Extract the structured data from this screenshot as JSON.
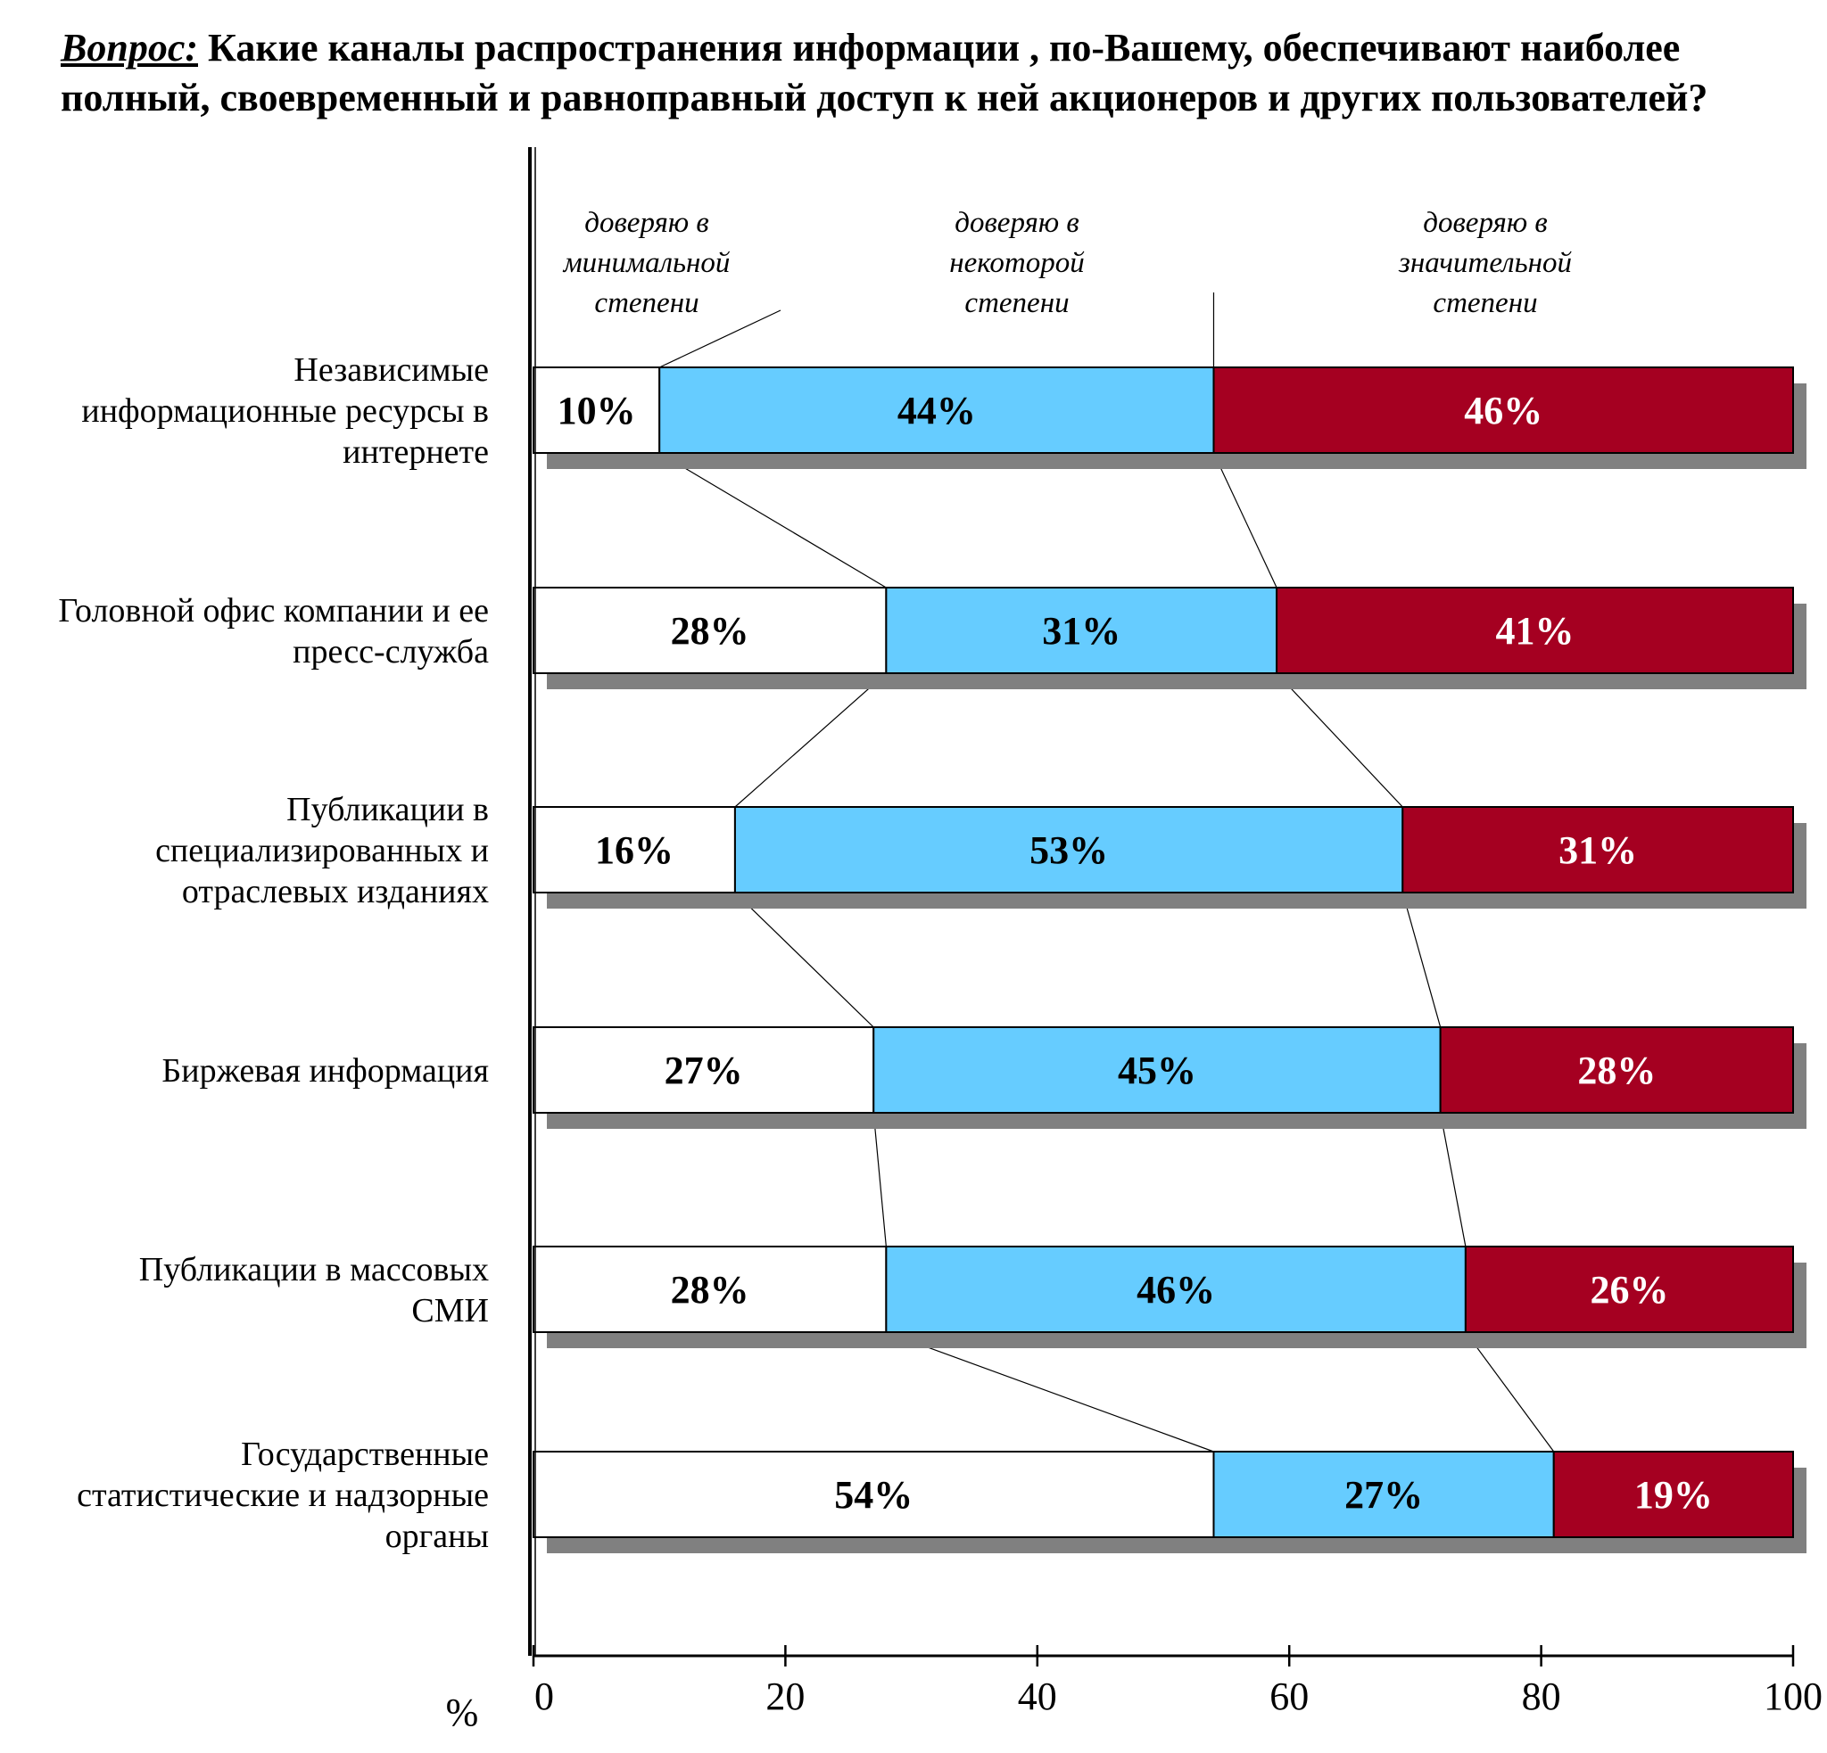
{
  "question": {
    "label": "Вопрос:",
    "text": "Какие каналы распространения информации , по-Вашему, обеспечивают наиболее полный, своевременный и равноправный доступ к ней акционеров и других пользователей?"
  },
  "colors": {
    "minimal": "#ffffff",
    "some": "#66ccff",
    "significant": "#a50021",
    "shadow": "#808080",
    "label_dark": "#000000",
    "label_light": "#ffffff"
  },
  "chart_data": {
    "type": "bar",
    "orientation": "horizontal",
    "stacked": true,
    "grid": false,
    "categories": [
      [
        "Независимые",
        "информационные ресурсы в",
        "интернете"
      ],
      [
        "Головной офис компании и ее",
        "пресс-служба"
      ],
      [
        "Публикации в",
        "специализированных и",
        "отраслевых изданиях"
      ],
      [
        "Биржевая информация"
      ],
      [
        "Публикации в массовых",
        "СМИ"
      ],
      [
        "Государственные",
        "статистические и надзорные",
        "органы"
      ]
    ],
    "series": [
      {
        "name": [
          "доверяю в",
          "минимальной",
          "степени"
        ],
        "values": [
          10,
          28,
          16,
          27,
          28,
          54
        ],
        "labels": [
          "10%",
          "28%",
          "16%",
          "27%",
          "28%",
          "54%"
        ]
      },
      {
        "name": [
          "доверяю в",
          "некоторой",
          "степени"
        ],
        "values": [
          44,
          31,
          53,
          45,
          46,
          27
        ],
        "labels": [
          "44%",
          "31%",
          "53%",
          "45%",
          "46%",
          "27%"
        ]
      },
      {
        "name": [
          "доверяю в",
          "значительной",
          "степени"
        ],
        "values": [
          46,
          41,
          31,
          28,
          26,
          19
        ],
        "labels": [
          "46%",
          "41%",
          "31%",
          "28%",
          "26%",
          "19%"
        ]
      }
    ],
    "xlim": [
      0,
      100
    ],
    "xticks": [
      0,
      20,
      40,
      60,
      80,
      100
    ],
    "xtick_labels": [
      "0",
      "20",
      "40",
      "60",
      "80",
      "100"
    ],
    "xlabel": "%"
  }
}
